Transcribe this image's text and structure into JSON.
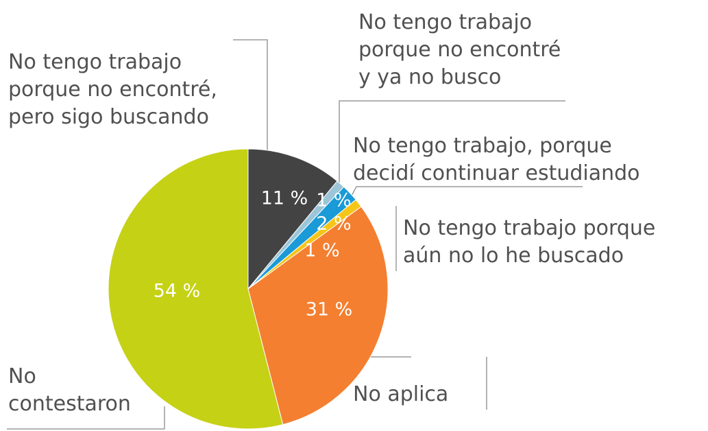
{
  "chart_data": {
    "type": "pie",
    "categories": [
      [
        "No tengo trabajo",
        "porque no encontré,",
        "pero sigo buscando"
      ],
      [
        "No tengo trabajo",
        "porque no encontré",
        "y ya no busco"
      ],
      [
        "No tengo trabajo, porque",
        "decidí continuar estudiando"
      ],
      [
        "No tengo trabajo porque",
        "aún no lo he buscado"
      ],
      [
        "No aplica"
      ],
      [
        "No",
        "contestaron"
      ]
    ],
    "values": [
      11,
      1,
      2,
      1,
      31,
      54
    ],
    "value_labels": [
      "11 %",
      "1 %",
      "2 %",
      "1 %",
      "31 %",
      "54 %"
    ],
    "colors": [
      "#434344",
      "#9cc5d8",
      "#1a9ad7",
      "#f5c518",
      "#f47f30",
      "#c5d115"
    ]
  }
}
